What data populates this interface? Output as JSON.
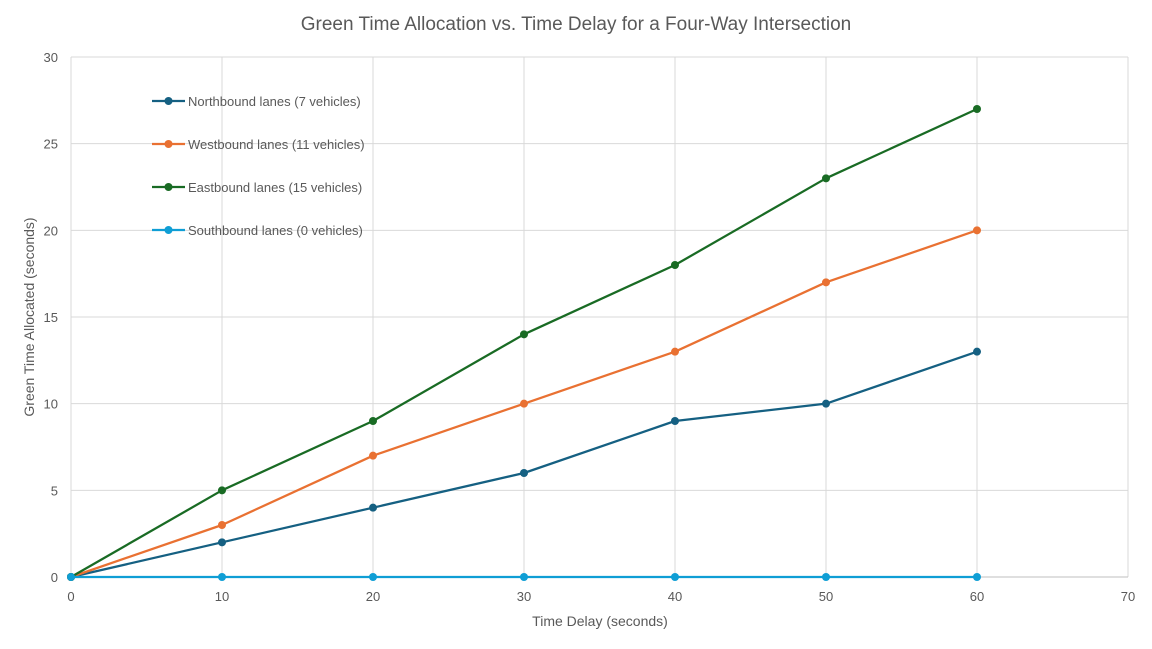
{
  "chart_data": {
    "type": "line",
    "title": "Green Time Allocation vs. Time Delay for a Four-Way Intersection",
    "xlabel": "Time Delay (seconds)",
    "ylabel": "Green Time Allocated (seconds)",
    "xlim": [
      0,
      70
    ],
    "ylim": [
      0,
      30
    ],
    "xticks": [
      0,
      10,
      20,
      30,
      40,
      50,
      60,
      70
    ],
    "yticks": [
      0,
      5,
      10,
      15,
      20,
      25,
      30
    ],
    "grid": true,
    "legend_position": "top-left",
    "x": [
      0,
      10,
      20,
      30,
      40,
      50,
      60
    ],
    "series": [
      {
        "name": "Northbound lanes (7 vehicles)",
        "color": "#156082",
        "values": [
          0,
          2,
          4,
          6,
          9,
          10,
          13
        ]
      },
      {
        "name": "Westbound lanes (11 vehicles)",
        "color": "#E97132",
        "values": [
          0,
          3,
          7,
          10,
          13,
          17,
          20
        ]
      },
      {
        "name": "Eastbound lanes (15 vehicles)",
        "color": "#196B24",
        "values": [
          0,
          5,
          9,
          14,
          18,
          23,
          27
        ]
      },
      {
        "name": "Southbound lanes (0 vehicles)",
        "color": "#0F9ED5",
        "values": [
          0,
          0,
          0,
          0,
          0,
          0,
          0
        ]
      }
    ]
  }
}
